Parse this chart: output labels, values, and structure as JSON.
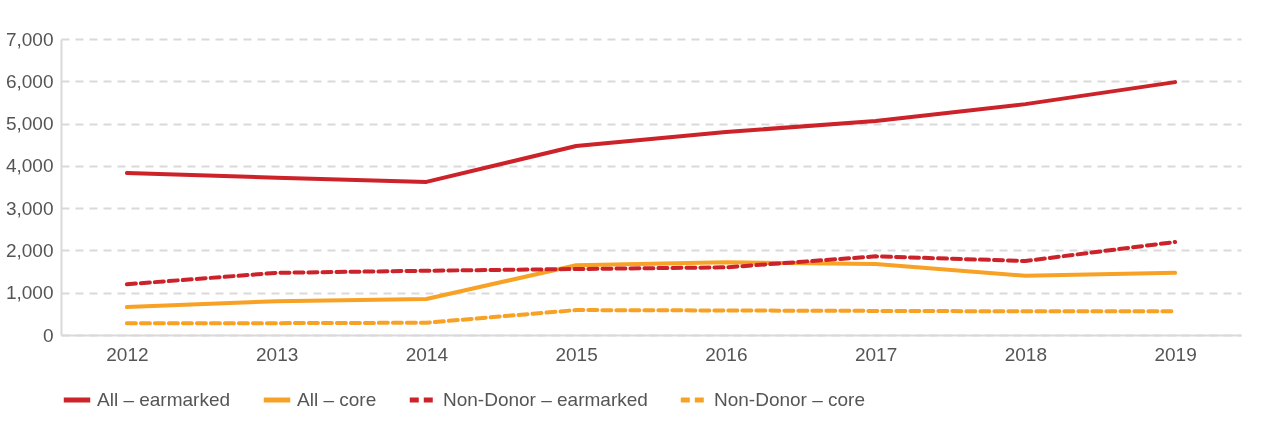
{
  "chart_data": {
    "type": "line",
    "categories": [
      "2012",
      "2013",
      "2014",
      "2015",
      "2016",
      "2017",
      "2018",
      "2019"
    ],
    "ylim": [
      0,
      7000
    ],
    "yticks": [
      {
        "value": 0,
        "label": "0"
      },
      {
        "value": 1000,
        "label": "1,000"
      },
      {
        "value": 2000,
        "label": "2,000"
      },
      {
        "value": 3000,
        "label": "3,000"
      },
      {
        "value": 4000,
        "label": "4,000"
      },
      {
        "value": 5000,
        "label": "5,000"
      },
      {
        "value": 6000,
        "label": "6,000"
      },
      {
        "value": 7000,
        "label": "7,000"
      }
    ],
    "grid": "y",
    "legend": "bottom",
    "marker": "none",
    "series": [
      {
        "name": "All – earmarked",
        "color": "#cc2229",
        "line_style": "solid",
        "values": [
          3830,
          3720,
          3620,
          4470,
          4800,
          5060,
          5460,
          5980
        ]
      },
      {
        "name": "All – core",
        "color": "#f7a125",
        "line_style": "solid",
        "values": [
          660,
          800,
          850,
          1650,
          1720,
          1680,
          1400,
          1470
        ]
      },
      {
        "name": "Non-Donor – earmarked",
        "color": "#cc2229",
        "line_style": "dashed",
        "values": [
          1200,
          1470,
          1520,
          1560,
          1600,
          1860,
          1750,
          2200
        ]
      },
      {
        "name": "Non-Donor – core",
        "color": "#f7a125",
        "line_style": "dashed",
        "values": [
          280,
          280,
          290,
          590,
          580,
          570,
          560,
          560
        ]
      }
    ]
  }
}
